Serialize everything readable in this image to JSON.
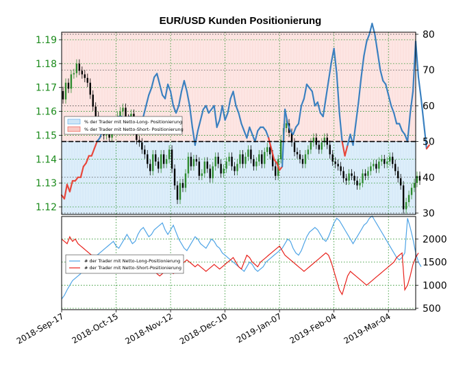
{
  "colors": {
    "long": "#3a80c0",
    "short": "#e8463a",
    "up_candle": "#2e8b2e",
    "down_candle": "#000000",
    "long_fill": "#ddeefa",
    "short_fill": "#fde6e4",
    "green_text": "#1a8a1a",
    "grid": "#1a8a1a",
    "legend_long": "#4da3e6",
    "legend_short": "#e8463a",
    "count_long": "#4da3e6",
    "count_short": "#e8201a"
  },
  "chart_data": [
    {
      "type": "line",
      "title": "EUR/USD Kunden Positionierung",
      "x_labels": [
        "2018-Sep-17",
        "2018-Oct-15",
        "2018-Nov-12",
        "2018-Dec-10",
        "2019-Jan-07",
        "2019-Feb-04",
        "2019-Mar-04"
      ],
      "x_label_index": [
        0,
        20,
        40,
        60,
        80,
        100,
        120
      ],
      "x_range": [
        0,
        130
      ],
      "left_axis": {
        "ticks": [
          "1.12",
          "1.13",
          "1.14",
          "1.15",
          "1.16",
          "1.17",
          "1.18",
          "1.19"
        ],
        "ylim": [
          1.12,
          1.19
        ]
      },
      "right_axis": {
        "ticks": [
          "30",
          "40",
          "50",
          "60",
          "70",
          "80"
        ],
        "ylim": [
          30,
          80
        ]
      },
      "grid": true,
      "reference_line": 50,
      "legend": {
        "position": "left",
        "entries": [
          "% der Trader mit Netto-Long- Positionierung",
          "% der Trader mit Netto-Short- Positionierung"
        ]
      },
      "series": [
        {
          "role": "net_long_pct",
          "values": [
            35,
            34,
            38,
            36,
            39,
            39,
            40,
            40,
            43,
            44,
            46,
            46,
            48,
            50,
            51,
            53,
            54,
            55,
            56,
            55,
            56,
            57,
            57,
            56,
            55,
            57,
            56,
            55,
            56,
            55,
            57,
            60,
            63,
            65,
            68,
            69,
            66,
            63,
            62,
            66,
            64,
            60,
            58,
            60,
            64,
            67,
            64,
            60,
            54,
            49,
            53,
            56,
            59,
            60,
            58,
            59,
            60,
            54,
            56,
            60,
            56,
            58,
            62,
            64,
            60,
            58,
            55,
            53,
            51,
            54,
            52,
            50,
            53,
            54,
            54,
            53,
            51,
            48,
            45,
            44,
            42,
            43,
            59,
            55,
            53,
            52,
            54,
            55,
            60,
            62,
            66,
            65,
            64,
            60,
            61,
            58,
            57,
            62,
            67,
            72,
            76,
            69,
            58,
            50,
            46,
            49,
            52,
            49,
            55,
            61,
            68,
            74,
            78,
            80,
            83,
            80,
            75,
            70,
            67,
            66,
            63,
            60,
            58,
            55,
            55,
            53,
            52,
            50,
            58,
            64,
            78,
            68,
            62,
            55,
            48,
            49
          ]
        },
        {
          "role": "eurusd_price",
          "open": [
            1.1685,
            1.165,
            1.172,
            1.1695,
            1.1755,
            1.176,
            1.18,
            1.177,
            1.1755,
            1.174,
            1.172,
            1.167,
            1.162,
            1.158,
            1.153,
            1.151,
            1.15,
            1.154,
            1.149,
            1.153,
            1.156,
            1.158,
            1.16,
            1.1615,
            1.157,
            1.155,
            1.159,
            1.152,
            1.148,
            1.147,
            1.144,
            1.142,
            1.138,
            1.135,
            1.142,
            1.139,
            1.136,
            1.142,
            1.138,
            1.14,
            1.144,
            1.136,
            1.129,
            1.123,
            1.13,
            1.128,
            1.134,
            1.141,
            1.137,
            1.14,
            1.139,
            1.133,
            1.134,
            1.139,
            1.136,
            1.132,
            1.137,
            1.141,
            1.138,
            1.134,
            1.136,
            1.139,
            1.141,
            1.137,
            1.135,
            1.138,
            1.142,
            1.138,
            1.141,
            1.144,
            1.14,
            1.137,
            1.139,
            1.142,
            1.138,
            1.143,
            1.145,
            1.142,
            1.137,
            1.133,
            1.14,
            1.148,
            1.153,
            1.155,
            1.151,
            1.147,
            1.143,
            1.142,
            1.14,
            1.138,
            1.142,
            1.144,
            1.147,
            1.149,
            1.146,
            1.144,
            1.147,
            1.149,
            1.146,
            1.142,
            1.139,
            1.138,
            1.137,
            1.135,
            1.132,
            1.131,
            1.134,
            1.133,
            1.131,
            1.129,
            1.13,
            1.134,
            1.133,
            1.135,
            1.137,
            1.138,
            1.136,
            1.139,
            1.14,
            1.138,
            1.139,
            1.141,
            1.138,
            1.135,
            1.132,
            1.129,
            1.119,
            1.122,
            1.125,
            1.128,
            1.13,
            1.133
          ],
          "close": [
            1.165,
            1.172,
            1.1695,
            1.1755,
            1.176,
            1.18,
            1.177,
            1.1755,
            1.174,
            1.172,
            1.167,
            1.162,
            1.158,
            1.153,
            1.151,
            1.15,
            1.154,
            1.149,
            1.153,
            1.156,
            1.158,
            1.16,
            1.1615,
            1.157,
            1.155,
            1.159,
            1.152,
            1.148,
            1.147,
            1.144,
            1.142,
            1.138,
            1.135,
            1.142,
            1.139,
            1.136,
            1.142,
            1.138,
            1.14,
            1.144,
            1.136,
            1.129,
            1.123,
            1.13,
            1.128,
            1.134,
            1.141,
            1.137,
            1.14,
            1.139,
            1.133,
            1.134,
            1.139,
            1.136,
            1.132,
            1.137,
            1.141,
            1.138,
            1.134,
            1.136,
            1.139,
            1.141,
            1.137,
            1.135,
            1.138,
            1.142,
            1.138,
            1.141,
            1.144,
            1.14,
            1.137,
            1.139,
            1.142,
            1.138,
            1.143,
            1.145,
            1.142,
            1.137,
            1.133,
            1.14,
            1.148,
            1.153,
            1.155,
            1.151,
            1.147,
            1.143,
            1.142,
            1.14,
            1.138,
            1.142,
            1.144,
            1.147,
            1.149,
            1.146,
            1.144,
            1.147,
            1.149,
            1.146,
            1.142,
            1.139,
            1.138,
            1.137,
            1.135,
            1.132,
            1.131,
            1.134,
            1.133,
            1.131,
            1.129,
            1.13,
            1.134,
            1.133,
            1.135,
            1.137,
            1.138,
            1.136,
            1.139,
            1.14,
            1.138,
            1.139,
            1.141,
            1.138,
            1.135,
            1.132,
            1.129,
            1.119,
            1.122,
            1.125,
            1.128,
            1.13,
            1.133,
            1.131
          ]
        }
      ]
    },
    {
      "type": "line",
      "x_range": [
        0,
        130
      ],
      "right_axis": {
        "ticks": [
          "500",
          "1000",
          "1500",
          "2000"
        ],
        "ylim": [
          500,
          2400
        ]
      },
      "grid": true,
      "legend": {
        "position": "left",
        "entries": [
          "# der Trader mit Netto-Long-Positionierung",
          "# der Trader mit Netto-Short-Positionierung"
        ]
      },
      "series": [
        {
          "role": "net_long_count",
          "values": [
            700,
            780,
            900,
            1000,
            1100,
            1150,
            1200,
            1250,
            1350,
            1450,
            1500,
            1550,
            1600,
            1650,
            1700,
            1750,
            1800,
            1850,
            1900,
            1950,
            1850,
            1800,
            1900,
            2000,
            2100,
            2000,
            1900,
            1950,
            2100,
            2200,
            2250,
            2150,
            2050,
            2100,
            2200,
            2250,
            2300,
            2350,
            2200,
            2100,
            2200,
            2300,
            2150,
            2000,
            1900,
            1800,
            1750,
            1850,
            1950,
            2050,
            2000,
            1900,
            1850,
            1800,
            1900,
            2000,
            1950,
            1850,
            1800,
            1700,
            1650,
            1600,
            1550,
            1500,
            1450,
            1400,
            1350,
            1300,
            1400,
            1500,
            1450,
            1350,
            1300,
            1350,
            1400,
            1500,
            1550,
            1600,
            1650,
            1700,
            1750,
            1800,
            1900,
            2000,
            1950,
            1800,
            1700,
            1650,
            1750,
            1900,
            2050,
            2150,
            2200,
            2250,
            2200,
            2100,
            2000,
            1950,
            2050,
            2200,
            2350,
            2450,
            2400,
            2300,
            2200,
            2100,
            2000,
            1900,
            2000,
            2100,
            2200,
            2300,
            2350,
            2450,
            2500,
            2400,
            2300,
            2200,
            2100,
            2000,
            1900,
            1800,
            1700,
            1600,
            1550,
            1600,
            1700,
            2450,
            2250,
            2000,
            1700,
            1500,
            1400
          ]
        },
        {
          "role": "net_short_count",
          "values": [
            2000,
            1950,
            1900,
            2050,
            1950,
            2000,
            1900,
            1850,
            1800,
            1750,
            1700,
            1650,
            1650,
            1600,
            1600,
            1550,
            1500,
            1500,
            1450,
            1400,
            1450,
            1500,
            1450,
            1400,
            1350,
            1400,
            1450,
            1400,
            1350,
            1300,
            1300,
            1350,
            1400,
            1350,
            1300,
            1250,
            1200,
            1250,
            1300,
            1350,
            1300,
            1250,
            1300,
            1400,
            1450,
            1500,
            1550,
            1500,
            1450,
            1400,
            1450,
            1400,
            1350,
            1300,
            1350,
            1400,
            1450,
            1400,
            1350,
            1400,
            1450,
            1500,
            1550,
            1600,
            1500,
            1400,
            1350,
            1500,
            1650,
            1600,
            1500,
            1450,
            1400,
            1500,
            1550,
            1600,
            1650,
            1700,
            1750,
            1800,
            1850,
            1750,
            1650,
            1600,
            1550,
            1500,
            1450,
            1400,
            1350,
            1300,
            1350,
            1400,
            1450,
            1500,
            1550,
            1600,
            1650,
            1700,
            1650,
            1500,
            1300,
            1100,
            900,
            800,
            1000,
            1200,
            1300,
            1250,
            1200,
            1150,
            1100,
            1050,
            1000,
            1050,
            1100,
            1150,
            1200,
            1250,
            1300,
            1350,
            1400,
            1450,
            1500,
            1600,
            1650,
            1700,
            900,
            1000,
            1200,
            1450,
            1600,
            1700
          ]
        }
      ]
    }
  ]
}
